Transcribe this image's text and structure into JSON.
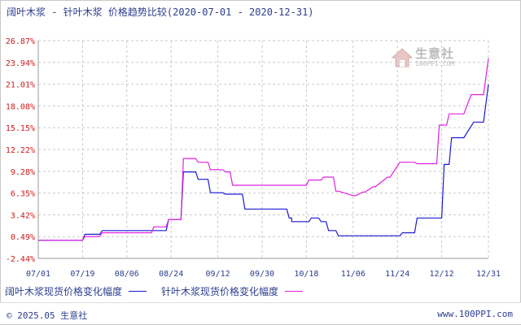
{
  "header": {
    "title": "阔叶木浆 - 针叶木浆 价格趋势比较(2020-07-01 - 2020-12-31)"
  },
  "watermark": {
    "brand": "生意社",
    "url": "100PPI.COM"
  },
  "legend": {
    "items": [
      {
        "label": "阔叶木浆现货价格变化幅度",
        "color": "#1a1ad6"
      },
      {
        "label": "针叶木浆现货价格变化幅度",
        "color": "#e020e0"
      }
    ]
  },
  "footer": {
    "copyright": "© 2025.05 生意社",
    "site": "www.100PPI.com"
  },
  "colors": {
    "grid": "#c9c9c9",
    "ytick": "#d11a1a",
    "xtick": "#2b3d8f",
    "axis": "#9a9a9a"
  },
  "chart_data": {
    "type": "line",
    "title": "阔叶木浆 - 针叶木浆 价格趋势比较(2020-07-01 - 2020-12-31)",
    "xlabel": "",
    "ylabel": "",
    "y_ticks": [
      "26.87%",
      "23.94%",
      "21.01%",
      "18.08%",
      "15.15%",
      "12.22%",
      "9.28%",
      "6.35%",
      "3.42%",
      "0.49%",
      "-2.44%"
    ],
    "y_tick_values": [
      26.87,
      23.94,
      21.01,
      18.08,
      15.15,
      12.22,
      9.28,
      6.35,
      3.42,
      0.49,
      -2.44
    ],
    "ylim": [
      -2.44,
      26.87
    ],
    "x_ticks": [
      "07/01",
      "07/19",
      "08/06",
      "08/24",
      "09/12",
      "09/30",
      "10/18",
      "11/06",
      "11/24",
      "12/12",
      "12/31"
    ],
    "x_tick_days": [
      0,
      18,
      36,
      54,
      73,
      91,
      109,
      128,
      146,
      164,
      183
    ],
    "xlim": [
      0,
      183
    ],
    "grid": true,
    "legend_position": "bottom-left",
    "series": [
      {
        "name": "阔叶木浆现货价格变化幅度",
        "color": "#1a1ad6",
        "x": [
          0,
          18,
          19,
          25,
          26,
          46,
          47,
          52,
          53,
          58,
          59,
          64,
          65,
          69,
          70,
          75,
          76,
          83,
          84,
          92,
          93,
          100,
          101,
          102,
          103,
          103,
          106,
          107,
          110,
          111,
          114,
          115,
          117,
          118,
          121,
          122,
          128,
          129,
          147,
          148,
          151,
          152,
          153,
          154,
          159,
          160,
          164,
          165,
          167,
          168,
          172,
          173,
          177,
          178,
          181,
          183
        ],
        "y": [
          0,
          0,
          0.8,
          0.8,
          1.3,
          1.3,
          1.3,
          1.3,
          2.8,
          2.8,
          9.2,
          9.2,
          8.2,
          8.2,
          6.4,
          6.4,
          6.2,
          6.2,
          4.2,
          4.2,
          4.2,
          4.2,
          4.2,
          3.0,
          3.0,
          2.5,
          2.5,
          2.5,
          2.5,
          3.0,
          3.0,
          2.5,
          2.5,
          1.3,
          1.3,
          0.6,
          0.6,
          0.6,
          0.6,
          1.0,
          1.0,
          1.0,
          1.0,
          3.0,
          3.0,
          3.0,
          3.0,
          10.2,
          10.2,
          13.8,
          13.8,
          13.8,
          15.9,
          15.9,
          15.9,
          21.0
        ]
      },
      {
        "name": "针叶木浆现货价格变化幅度",
        "color": "#e020e0",
        "x": [
          0,
          18,
          19,
          25,
          26,
          46,
          47,
          52,
          53,
          58,
          59,
          64,
          65,
          69,
          70,
          75,
          76,
          78,
          79,
          100,
          101,
          108,
          109,
          110,
          111,
          115,
          116,
          120,
          121,
          122,
          128,
          129,
          132,
          133,
          136,
          137,
          142,
          143,
          147,
          148,
          151,
          152,
          153,
          154,
          157,
          158,
          162,
          163,
          166,
          167,
          172,
          173,
          176,
          177,
          181,
          183
        ],
        "y": [
          0,
          0,
          0.5,
          0.5,
          1.0,
          1.0,
          1.8,
          1.8,
          2.8,
          2.8,
          11.0,
          11.0,
          10.5,
          10.5,
          9.5,
          9.5,
          9.2,
          9.2,
          7.4,
          7.4,
          7.4,
          7.4,
          7.4,
          8.1,
          8.1,
          8.1,
          8.5,
          8.5,
          6.6,
          6.6,
          6.0,
          6.0,
          6.5,
          6.5,
          7.2,
          7.2,
          8.5,
          8.5,
          10.5,
          10.5,
          10.5,
          10.5,
          10.5,
          10.3,
          10.3,
          10.3,
          10.3,
          15.5,
          15.5,
          17.0,
          17.0,
          17.0,
          19.6,
          19.6,
          19.6,
          24.5
        ]
      }
    ]
  }
}
